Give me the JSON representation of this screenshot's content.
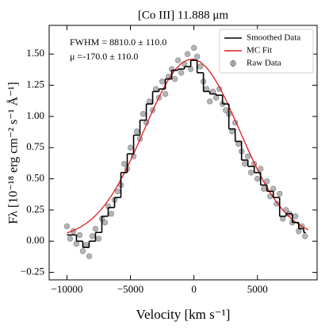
{
  "chart_data": {
    "type": "line",
    "title": "[Co III] 11.888 μm",
    "xlabel": "Velocity [km s⁻¹]",
    "ylabel": "Fλ [10⁻¹⁸ erg cm⁻² s⁻¹ Å⁻¹]",
    "annotations": [
      "FWHM = 8810.0 ± 110.0",
      "μ =-170.0 ± 110.0"
    ],
    "xlim": [
      -11400,
      9700
    ],
    "ylim": [
      -0.31,
      1.73
    ],
    "xticks": [
      {
        "value": -10000,
        "label": "−10000"
      },
      {
        "value": -5000,
        "label": "−5000"
      },
      0,
      5000
    ],
    "yticks": [
      {
        "value": -0.25,
        "label": "−0.25"
      },
      {
        "value": 0,
        "label": "0.00"
      },
      {
        "value": 0.25,
        "label": "0.25"
      },
      {
        "value": 0.5,
        "label": "0.50"
      },
      {
        "value": 0.75,
        "label": "0.75"
      },
      {
        "value": 1,
        "label": "1.00"
      },
      {
        "value": 1.25,
        "label": "1.25"
      },
      {
        "value": 1.5,
        "label": "1.50"
      }
    ],
    "legend": "upper right",
    "series": [
      {
        "name": "Smoothed Data",
        "type": "step",
        "color": "#000000",
        "x": [
          -10000,
          -9500,
          -9000,
          -8500,
          -8000,
          -7500,
          -7000,
          -6500,
          -6000,
          -5500,
          -5000,
          -4500,
          -4000,
          -3500,
          -3000,
          -2500,
          -2000,
          -1500,
          -1000,
          -500,
          0,
          500,
          1000,
          1500,
          2000,
          2500,
          3000,
          3500,
          4000,
          4500,
          5000,
          5500,
          6000,
          6500,
          7000,
          7500,
          8000,
          8500,
          8800
        ],
        "values": [
          0.05,
          0.05,
          0.0,
          -0.05,
          0.0,
          0.07,
          0.2,
          0.27,
          0.35,
          0.55,
          0.7,
          0.85,
          0.97,
          1.1,
          1.2,
          1.22,
          1.3,
          1.37,
          1.38,
          1.4,
          1.45,
          1.35,
          1.2,
          1.18,
          1.17,
          1.1,
          0.9,
          0.8,
          0.65,
          0.6,
          0.55,
          0.45,
          0.4,
          0.35,
          0.2,
          0.22,
          0.15,
          0.1,
          0.07
        ]
      },
      {
        "name": "MC Fit",
        "type": "line",
        "color": "#e41a1c",
        "x": [
          -10000,
          -9500,
          -9000,
          -8500,
          -8000,
          -7500,
          -7000,
          -6500,
          -6000,
          -5500,
          -5000,
          -4500,
          -4000,
          -3500,
          -3000,
          -2500,
          -2000,
          -1500,
          -1000,
          -500,
          0,
          500,
          1000,
          1500,
          2000,
          2500,
          3000,
          3500,
          4000,
          4500,
          5000,
          5500,
          6000,
          6500,
          7000,
          7500,
          8000,
          8500,
          9000
        ],
        "values": [
          0.066,
          0.084,
          0.109,
          0.141,
          0.181,
          0.231,
          0.292,
          0.364,
          0.448,
          0.542,
          0.646,
          0.757,
          0.873,
          0.989,
          1.102,
          1.206,
          1.297,
          1.372,
          1.425,
          1.454,
          1.459,
          1.437,
          1.391,
          1.323,
          1.237,
          1.136,
          1.025,
          0.91,
          0.794,
          0.681,
          0.574,
          0.476,
          0.39,
          0.314,
          0.249,
          0.196,
          0.153,
          0.118,
          0.091
        ]
      },
      {
        "name": "Raw Data",
        "type": "scatter",
        "color": "#6b6b6b",
        "x": [
          -10000,
          -9750,
          -9500,
          -9250,
          -9000,
          -8750,
          -8500,
          -8250,
          -8000,
          -7750,
          -7500,
          -7250,
          -7000,
          -6750,
          -6500,
          -6250,
          -6000,
          -5750,
          -5500,
          -5250,
          -5000,
          -4750,
          -4500,
          -4250,
          -4000,
          -3750,
          -3500,
          -3250,
          -3000,
          -2750,
          -2500,
          -2250,
          -2000,
          -1750,
          -1500,
          -1250,
          -1000,
          -750,
          -500,
          -250,
          0,
          250,
          500,
          750,
          1000,
          1250,
          1500,
          1750,
          2000,
          2250,
          2500,
          2750,
          3000,
          3250,
          3500,
          3750,
          4000,
          4250,
          4500,
          4750,
          5000,
          5250,
          5500,
          5750,
          6000,
          6250,
          6500,
          6750,
          7000,
          7250,
          7500,
          7750,
          8000,
          8250,
          8500,
          8750
        ],
        "values": [
          0.12,
          0.02,
          0.08,
          -0.02,
          0.05,
          -0.08,
          -0.03,
          -0.12,
          0.04,
          0.1,
          0.02,
          0.18,
          0.15,
          0.28,
          0.22,
          0.33,
          0.4,
          0.45,
          0.62,
          0.58,
          0.75,
          0.68,
          0.88,
          0.82,
          1.02,
          0.95,
          1.12,
          1.05,
          1.22,
          1.15,
          1.28,
          1.18,
          1.32,
          1.38,
          1.3,
          1.45,
          1.35,
          1.42,
          1.5,
          1.38,
          1.55,
          1.48,
          1.4,
          1.28,
          1.22,
          1.12,
          1.2,
          1.15,
          1.22,
          1.1,
          1.05,
          1.02,
          0.88,
          0.95,
          0.78,
          0.72,
          0.62,
          0.68,
          0.55,
          0.62,
          0.5,
          0.58,
          0.42,
          0.48,
          0.36,
          0.42,
          0.3,
          0.38,
          0.18,
          0.25,
          0.22,
          0.15,
          0.2,
          0.08,
          0.12,
          0.04
        ]
      }
    ]
  }
}
